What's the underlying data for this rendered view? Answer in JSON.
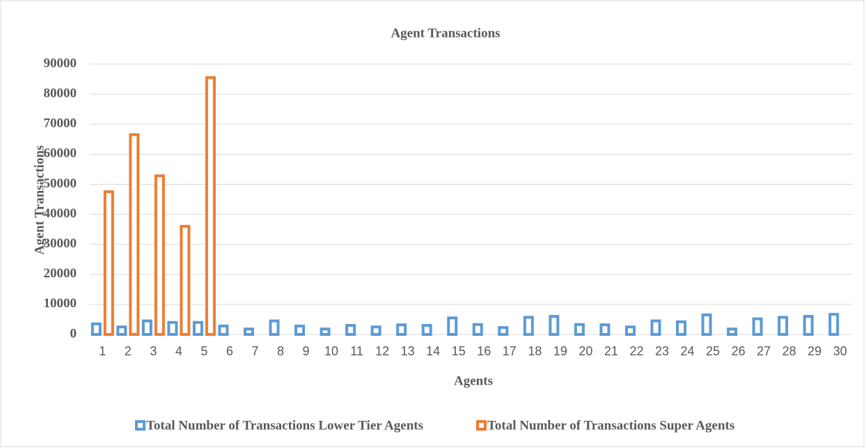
{
  "chart_data": {
    "type": "bar",
    "title": "Agent Transactions",
    "x_label": "Agents",
    "y_label": "Agent Transactions",
    "categories": [
      "1",
      "2",
      "3",
      "4",
      "5",
      "6",
      "7",
      "8",
      "9",
      "10",
      "11",
      "12",
      "13",
      "14",
      "15",
      "16",
      "17",
      "18",
      "19",
      "20",
      "21",
      "22",
      "23",
      "24",
      "25",
      "26",
      "27",
      "28",
      "29",
      "30"
    ],
    "series": [
      {
        "name": "Total Number of Transactions Lower Tier Agents",
        "color": "#5b9bd5",
        "values": [
          3500,
          2500,
          4500,
          4000,
          4000,
          2800,
          1800,
          4500,
          2800,
          1800,
          3000,
          2500,
          3200,
          3000,
          5500,
          3300,
          2300,
          5700,
          6000,
          3300,
          3200,
          2500,
          4500,
          4200,
          6500,
          1800,
          5200,
          5700,
          6000,
          6700
        ]
      },
      {
        "name": "Total Number of Transactions Super Agents",
        "color": "#ed7d31",
        "values": [
          47500,
          66500,
          52800,
          36000,
          85500,
          null,
          null,
          null,
          null,
          null,
          null,
          null,
          null,
          null,
          null,
          null,
          null,
          null,
          null,
          null,
          null,
          null,
          null,
          null,
          null,
          null,
          null,
          null,
          null,
          null
        ]
      }
    ],
    "ylim": [
      0,
      90000
    ],
    "yticks": [
      0,
      10000,
      20000,
      30000,
      40000,
      50000,
      60000,
      70000,
      80000,
      90000
    ],
    "grid": true,
    "legend": "bottom"
  }
}
